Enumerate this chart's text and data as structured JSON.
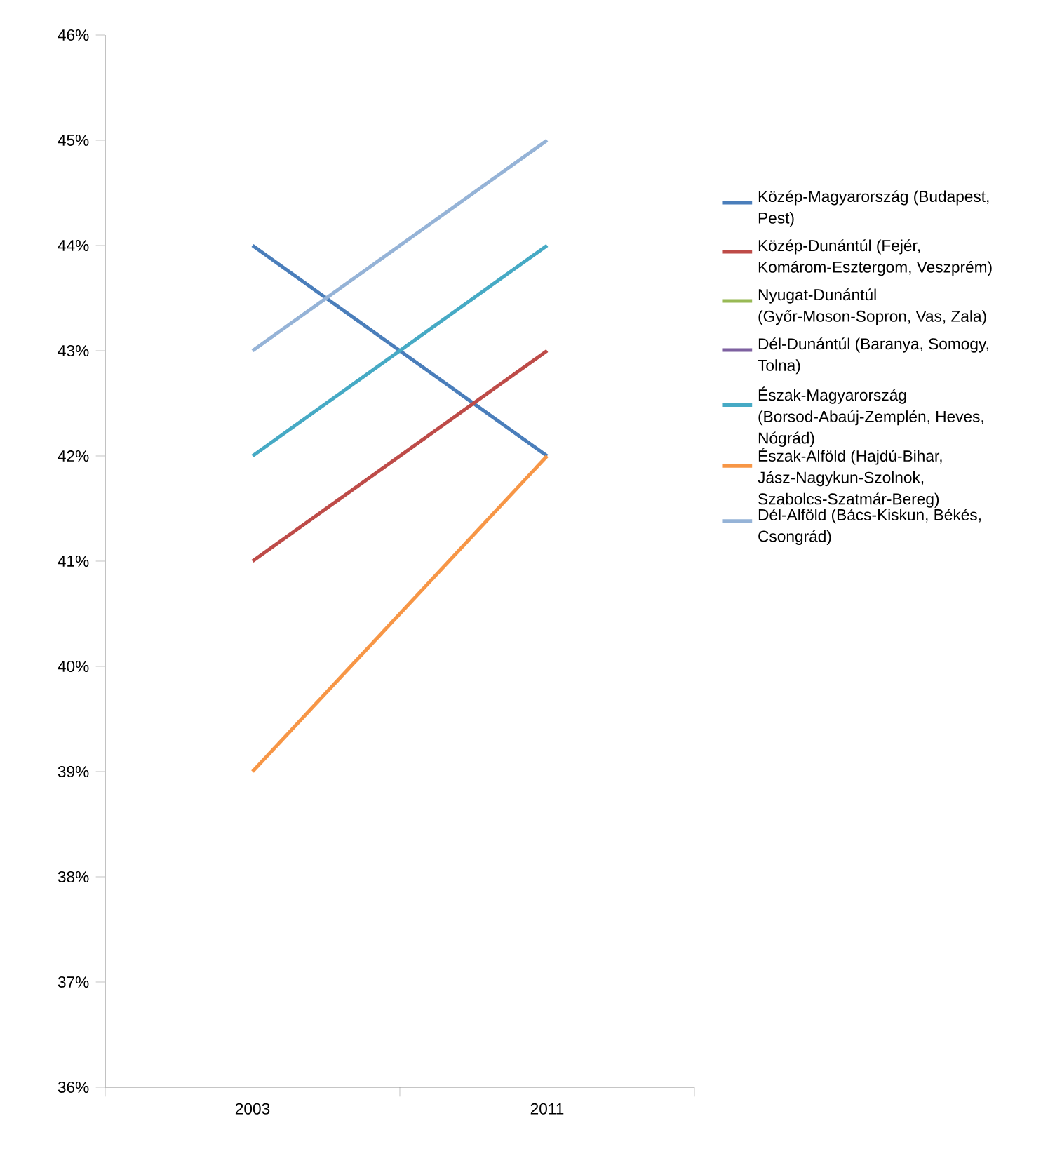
{
  "chart_data": {
    "type": "line",
    "categories": [
      "2003",
      "2011"
    ],
    "ylim": [
      36,
      46
    ],
    "yticks": [
      {
        "value": 36,
        "label": "36%"
      },
      {
        "value": 37,
        "label": "37%"
      },
      {
        "value": 38,
        "label": "38%"
      },
      {
        "value": 39,
        "label": "39%"
      },
      {
        "value": 40,
        "label": "40%"
      },
      {
        "value": 41,
        "label": "41%"
      },
      {
        "value": 42,
        "label": "42%"
      },
      {
        "value": 43,
        "label": "43%"
      },
      {
        "value": 44,
        "label": "44%"
      },
      {
        "value": 45,
        "label": "45%"
      },
      {
        "value": 46,
        "label": "46%"
      }
    ],
    "grid": false,
    "legend": "right",
    "marker": "none",
    "line_style": "solid",
    "series": [
      {
        "name": "Közép-Magyarország (Budapest, Pest)",
        "color": "#4a7ebb",
        "values": [
          44,
          42
        ]
      },
      {
        "name": "Közép-Dunántúl (Fejér, Komárom-Esztergom, Veszprém)",
        "color": "#be4b48",
        "values": [
          41,
          43
        ]
      },
      {
        "name": "Nyugat-Dunántúl (Győr-Moson-Sopron, Vas, Zala)",
        "color": "#98b954",
        "values": [
          null,
          null
        ]
      },
      {
        "name": "Dél-Dunántúl (Baranya, Somogy, Tolna)",
        "color": "#7d60a0",
        "values": [
          null,
          null
        ]
      },
      {
        "name": "Észak-Magyarország (Borsod-Abaúj-Zemplén, Heves, Nógrád)",
        "color": "#46aac5",
        "values": [
          42,
          44
        ]
      },
      {
        "name": "Észak-Alföld (Hajdú-Bihar, Jász-Nagykun-Szolnok, Szabolcs-Szatmár-Bereg)",
        "color": "#f79646",
        "values": [
          39,
          42
        ]
      },
      {
        "name": "Dél-Alföld (Bács-Kiskun, Békés, Csongrád)",
        "color": "#95b3d7",
        "values": [
          43,
          45
        ]
      }
    ]
  }
}
